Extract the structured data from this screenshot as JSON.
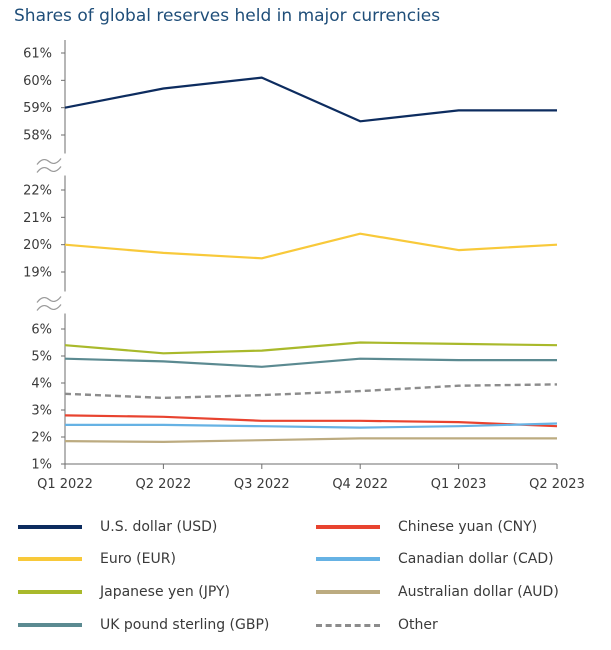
{
  "chart_data": {
    "type": "line",
    "title": "Shares of global reserves held in major currencies",
    "x": [
      "Q1 2022",
      "Q2 2022",
      "Q3 2022",
      "Q4 2022",
      "Q1 2023",
      "Q2 2023"
    ],
    "y_axis_broken": true,
    "y_panels": [
      {
        "ticks": [
          "61%",
          "60%",
          "59%",
          "58%"
        ],
        "ylim": [
          58,
          61
        ]
      },
      {
        "ticks": [
          "22%",
          "21%",
          "20%",
          "19%"
        ],
        "ylim": [
          19,
          22
        ]
      },
      {
        "ticks": [
          "6%",
          "5%",
          "4%",
          "3%",
          "2%",
          "1%"
        ],
        "ylim": [
          1,
          6
        ]
      }
    ],
    "grid": false,
    "legend_position": "bottom",
    "series": [
      {
        "name": "U.S. dollar (USD)",
        "color": "#0d2c5f",
        "dash": false,
        "values": [
          59.0,
          59.7,
          60.1,
          58.5,
          58.9,
          58.9
        ]
      },
      {
        "name": "Chinese yuan (CNY)",
        "color": "#e8432f",
        "dash": false,
        "values": [
          2.8,
          2.75,
          2.6,
          2.6,
          2.55,
          2.4
        ]
      },
      {
        "name": "Euro (EUR)",
        "color": "#f8c93a",
        "dash": false,
        "values": [
          20.0,
          19.7,
          19.5,
          20.4,
          19.8,
          20.0
        ]
      },
      {
        "name": "Canadian dollar (CAD)",
        "color": "#66b2e4",
        "dash": false,
        "values": [
          2.45,
          2.45,
          2.4,
          2.35,
          2.4,
          2.5
        ]
      },
      {
        "name": "Japanese yen (JPY)",
        "color": "#a9b92b",
        "dash": false,
        "values": [
          5.4,
          5.1,
          5.2,
          5.5,
          5.45,
          5.4
        ]
      },
      {
        "name": "Australian dollar (AUD)",
        "color": "#bcab80",
        "dash": false,
        "values": [
          1.85,
          1.82,
          1.88,
          1.95,
          1.95,
          1.95
        ]
      },
      {
        "name": "UK pound sterling (GBP)",
        "color": "#5b8a91",
        "dash": false,
        "values": [
          4.9,
          4.8,
          4.6,
          4.9,
          4.85,
          4.85
        ]
      },
      {
        "name": "Other",
        "color": "#8c8c8c",
        "dash": true,
        "values": [
          3.6,
          3.45,
          3.55,
          3.7,
          3.9,
          3.95
        ]
      }
    ]
  },
  "legend": {
    "items": [
      {
        "label": "U.S. dollar (USD)",
        "color": "#0d2c5f",
        "dash": false
      },
      {
        "label": "Chinese yuan (CNY)",
        "color": "#e8432f",
        "dash": false
      },
      {
        "label": "Euro (EUR)",
        "color": "#f8c93a",
        "dash": false
      },
      {
        "label": "Canadian dollar (CAD)",
        "color": "#66b2e4",
        "dash": false
      },
      {
        "label": "Japanese yen (JPY)",
        "color": "#a9b92b",
        "dash": false
      },
      {
        "label": "Australian dollar (AUD)",
        "color": "#bcab80",
        "dash": false
      },
      {
        "label": "UK pound sterling (GBP)",
        "color": "#5b8a91",
        "dash": false
      },
      {
        "label": "Other",
        "color": "#8c8c8c",
        "dash": true
      }
    ]
  }
}
